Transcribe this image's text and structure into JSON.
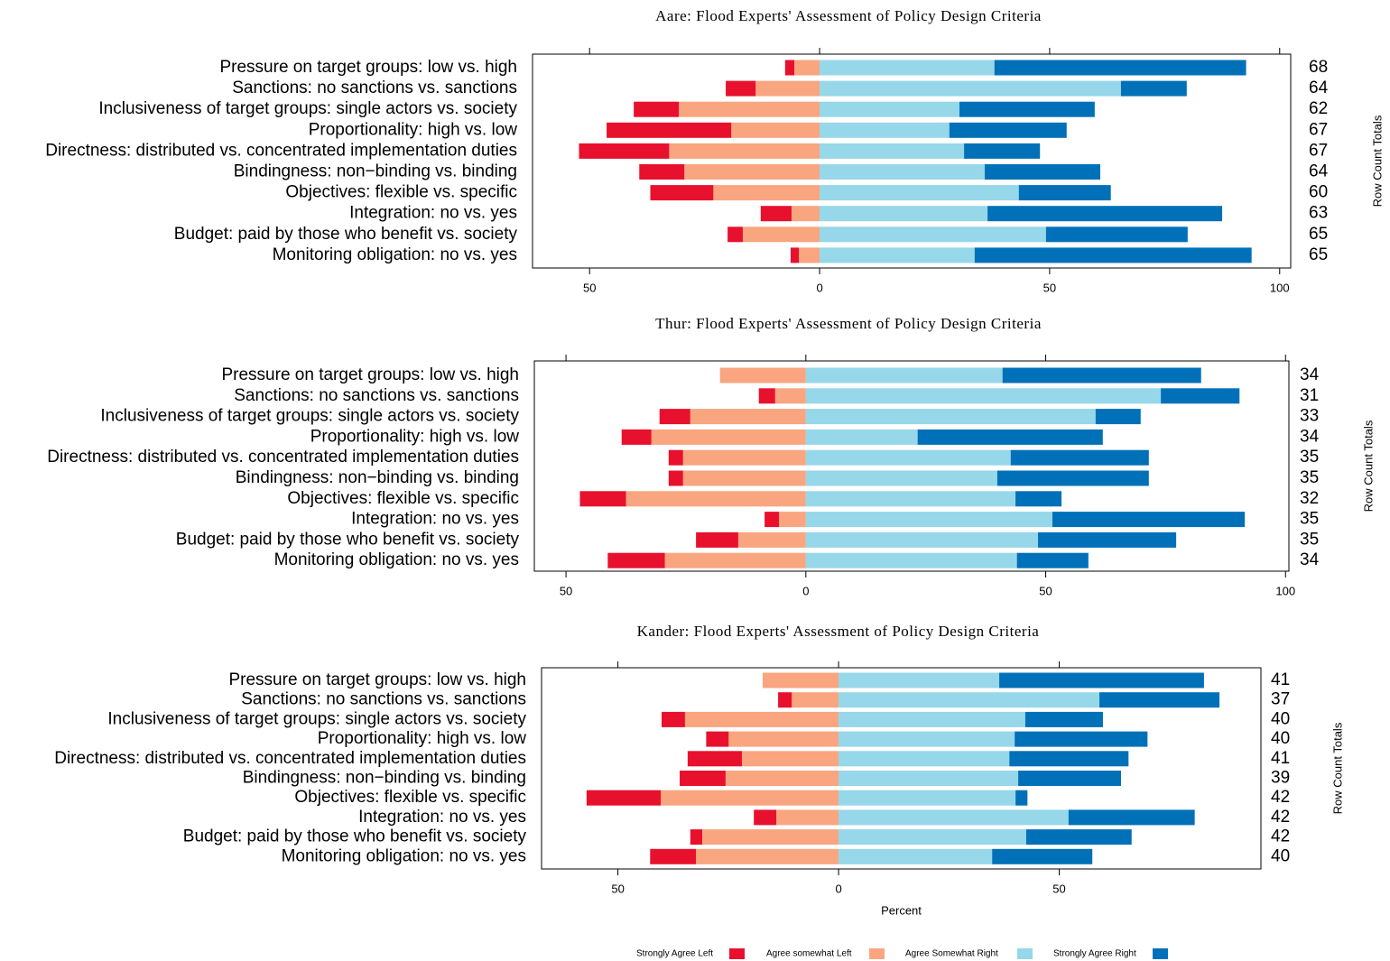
{
  "chart_data": [
    {
      "type": "diverging_bar",
      "title": "Aare: Flood Experts' Assessment of Policy Design Criteria",
      "categories": [
        "Pressure on target groups: low vs. high",
        "Sanctions: no sanctions vs. sanctions",
        "Inclusiveness of target groups: single actors vs. society",
        "Proportionality: high vs. low",
        "Directness: distributed vs. concentrated implementation duties",
        "Bindingness: non−binding vs. binding",
        "Objectives: flexible vs. specific",
        "Integration: no vs. yes",
        "Budget: paid by those who benefit vs. society",
        "Monitoring obligation: no vs. yes"
      ],
      "series": [
        {
          "name": "Strongly Agree Left",
          "color": "#e8112d",
          "values": [
            -2,
            -6.5,
            -9.8,
            -27.1,
            -19.6,
            -9.8,
            -13.7,
            -6.7,
            -3.3,
            -1.8
          ]
        },
        {
          "name": "Agree somewhat Left",
          "color": "#f9a57f",
          "values": [
            -5.5,
            -13.9,
            -30.6,
            -19.2,
            -32.7,
            -29.4,
            -23.1,
            -6.1,
            -16.7,
            -4.5
          ]
        },
        {
          "name": "Agree Somewhat Right",
          "color": "#96d7ea",
          "values": [
            38,
            65.5,
            30.4,
            28.2,
            31.4,
            35.9,
            43.3,
            36.5,
            49.2,
            33.7
          ]
        },
        {
          "name": "Strongly Agree Right",
          "color": "#0071b8",
          "values": [
            54.7,
            14.3,
            29.4,
            25.5,
            16.5,
            25.1,
            20,
            51,
            30.8,
            60.2
          ]
        }
      ],
      "row_totals": [
        68,
        64,
        62,
        67,
        67,
        64,
        60,
        63,
        65,
        65
      ],
      "row_totals_label": "Row Count Totals",
      "xlim": [
        -62.4,
        102.4
      ],
      "xticks": [
        {
          "value": -50,
          "label": "50"
        },
        0,
        50,
        100
      ]
    },
    {
      "type": "diverging_bar",
      "title": "Thur: Flood Experts' Assessment of Policy Design Criteria",
      "categories": [
        "Pressure on target groups: low vs. high",
        "Sanctions: no sanctions vs. sanctions",
        "Inclusiveness of target groups: single actors vs. society",
        "Proportionality: high vs. low",
        "Directness: distributed vs. concentrated implementation duties",
        "Bindingness: non−binding vs. binding",
        "Objectives: flexible vs. specific",
        "Integration: no vs. yes",
        "Budget: paid by those who benefit vs. society",
        "Monitoring obligation: no vs. yes"
      ],
      "series": [
        {
          "name": "Strongly Agree Left",
          "color": "#e8112d",
          "values": [
            0,
            -3.4,
            -6.4,
            -6.2,
            -3,
            -3,
            -9.6,
            -3,
            -8.8,
            -11.9
          ]
        },
        {
          "name": "Agree somewhat Left",
          "color": "#f9a57f",
          "values": [
            -17.9,
            -6.4,
            -24.1,
            -32.2,
            -25.6,
            -25.6,
            -37.5,
            -5.6,
            -14.1,
            -29.4
          ]
        },
        {
          "name": "Agree Somewhat Right",
          "color": "#96d7ea",
          "values": [
            41,
            74,
            60.4,
            23.3,
            42.7,
            39.9,
            43.7,
            51.4,
            48.4,
            44
          ]
        },
        {
          "name": "Strongly Agree Right",
          "color": "#0071b8",
          "values": [
            41.4,
            16.4,
            9.4,
            38.6,
            28.8,
            31.6,
            9.6,
            40.1,
            28.8,
            14.9
          ]
        }
      ],
      "row_totals": [
        34,
        31,
        33,
        34,
        35,
        35,
        32,
        35,
        35,
        34
      ],
      "row_totals_label": "Row Count Totals",
      "xlim": [
        -56.6,
        100.7
      ],
      "xticks": [
        {
          "value": -50,
          "label": "50"
        },
        0,
        50,
        100
      ]
    },
    {
      "type": "diverging_bar",
      "title": "Kander: Flood Experts' Assessment of Policy Design Criteria",
      "categories": [
        "Pressure on target groups: low vs. high",
        "Sanctions: no sanctions vs. sanctions",
        "Inclusiveness of target groups: single actors vs. society",
        "Proportionality: high vs. low",
        "Directness: distributed vs. concentrated implementation duties",
        "Bindingness: non−binding vs. binding",
        "Objectives: flexible vs. specific",
        "Integration: no vs. yes",
        "Budget: paid by those who benefit vs. society",
        "Monitoring obligation: no vs. yes"
      ],
      "series": [
        {
          "name": "Strongly Agree Left",
          "color": "#e8112d",
          "values": [
            0,
            -3.1,
            -5.3,
            -5.1,
            -12.3,
            -10.4,
            -16.8,
            -5.1,
            -2.7,
            -10.4
          ]
        },
        {
          "name": "Agree somewhat Left",
          "color": "#f9a57f",
          "values": [
            -17.2,
            -10.6,
            -34.8,
            -24.9,
            -21.9,
            -25.6,
            -40.3,
            -14.1,
            -30.9,
            -32.3
          ]
        },
        {
          "name": "Agree Somewhat Right",
          "color": "#96d7ea",
          "values": [
            36.4,
            59.1,
            42.3,
            39.9,
            38.7,
            40.7,
            40.1,
            52.1,
            42.5,
            34.8
          ]
        },
        {
          "name": "Strongly Agree Right",
          "color": "#0071b8",
          "values": [
            46.4,
            27.2,
            17.6,
            30.1,
            27,
            23.3,
            2.7,
            28.6,
            23.9,
            22.7
          ]
        }
      ],
      "row_totals": [
        41,
        37,
        40,
        40,
        41,
        39,
        42,
        42,
        42,
        40
      ],
      "row_totals_label": "Row Count Totals",
      "xlim": [
        -67.3,
        95.7
      ],
      "xticks": [
        {
          "value": -50,
          "label": "50"
        },
        0,
        50
      ],
      "xlabel": "Percent"
    }
  ]
}
